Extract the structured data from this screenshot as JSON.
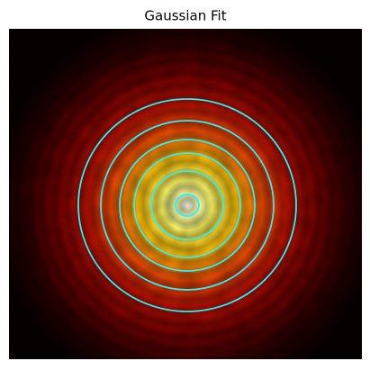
{
  "chart_data": {
    "type": "heatmap",
    "title": "Gaussian Fit"
  }
}
